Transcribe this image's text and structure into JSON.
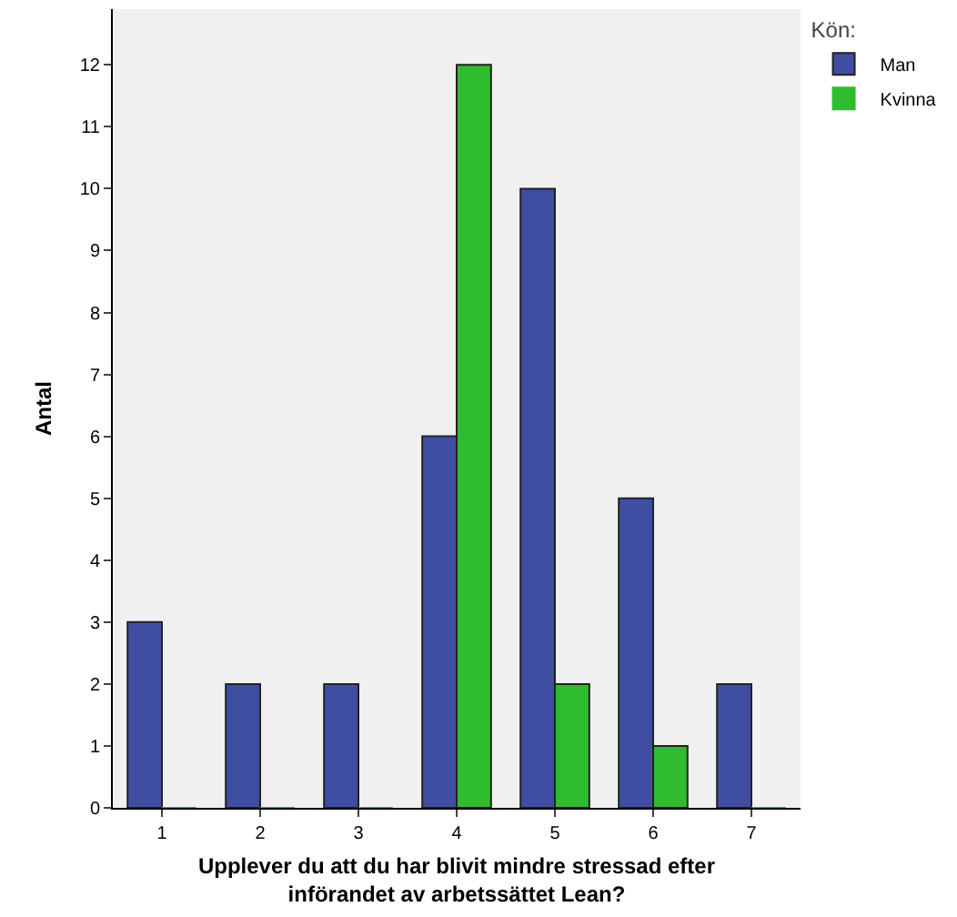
{
  "chart_data": {
    "type": "bar",
    "xlabel": "Upplever du att du har blivit mindre stressad efter införandet av arbetssättet Lean?",
    "ylabel": "Antal",
    "legend_title": "Kön:",
    "categories": [
      "1",
      "2",
      "3",
      "4",
      "5",
      "6",
      "7"
    ],
    "series": [
      {
        "name": "Man",
        "color": "#3f4ea3",
        "values": [
          3,
          2,
          2,
          6,
          10,
          5,
          2
        ]
      },
      {
        "name": "Kvinna",
        "color": "#2fbc2f",
        "values": [
          0,
          0,
          0,
          12,
          2,
          1,
          0
        ]
      }
    ],
    "ylim": [
      0,
      12.9
    ],
    "yticks": [
      0,
      1,
      2,
      3,
      4,
      5,
      6,
      7,
      8,
      9,
      10,
      11,
      12
    ],
    "grid": false,
    "legend": "top right"
  }
}
